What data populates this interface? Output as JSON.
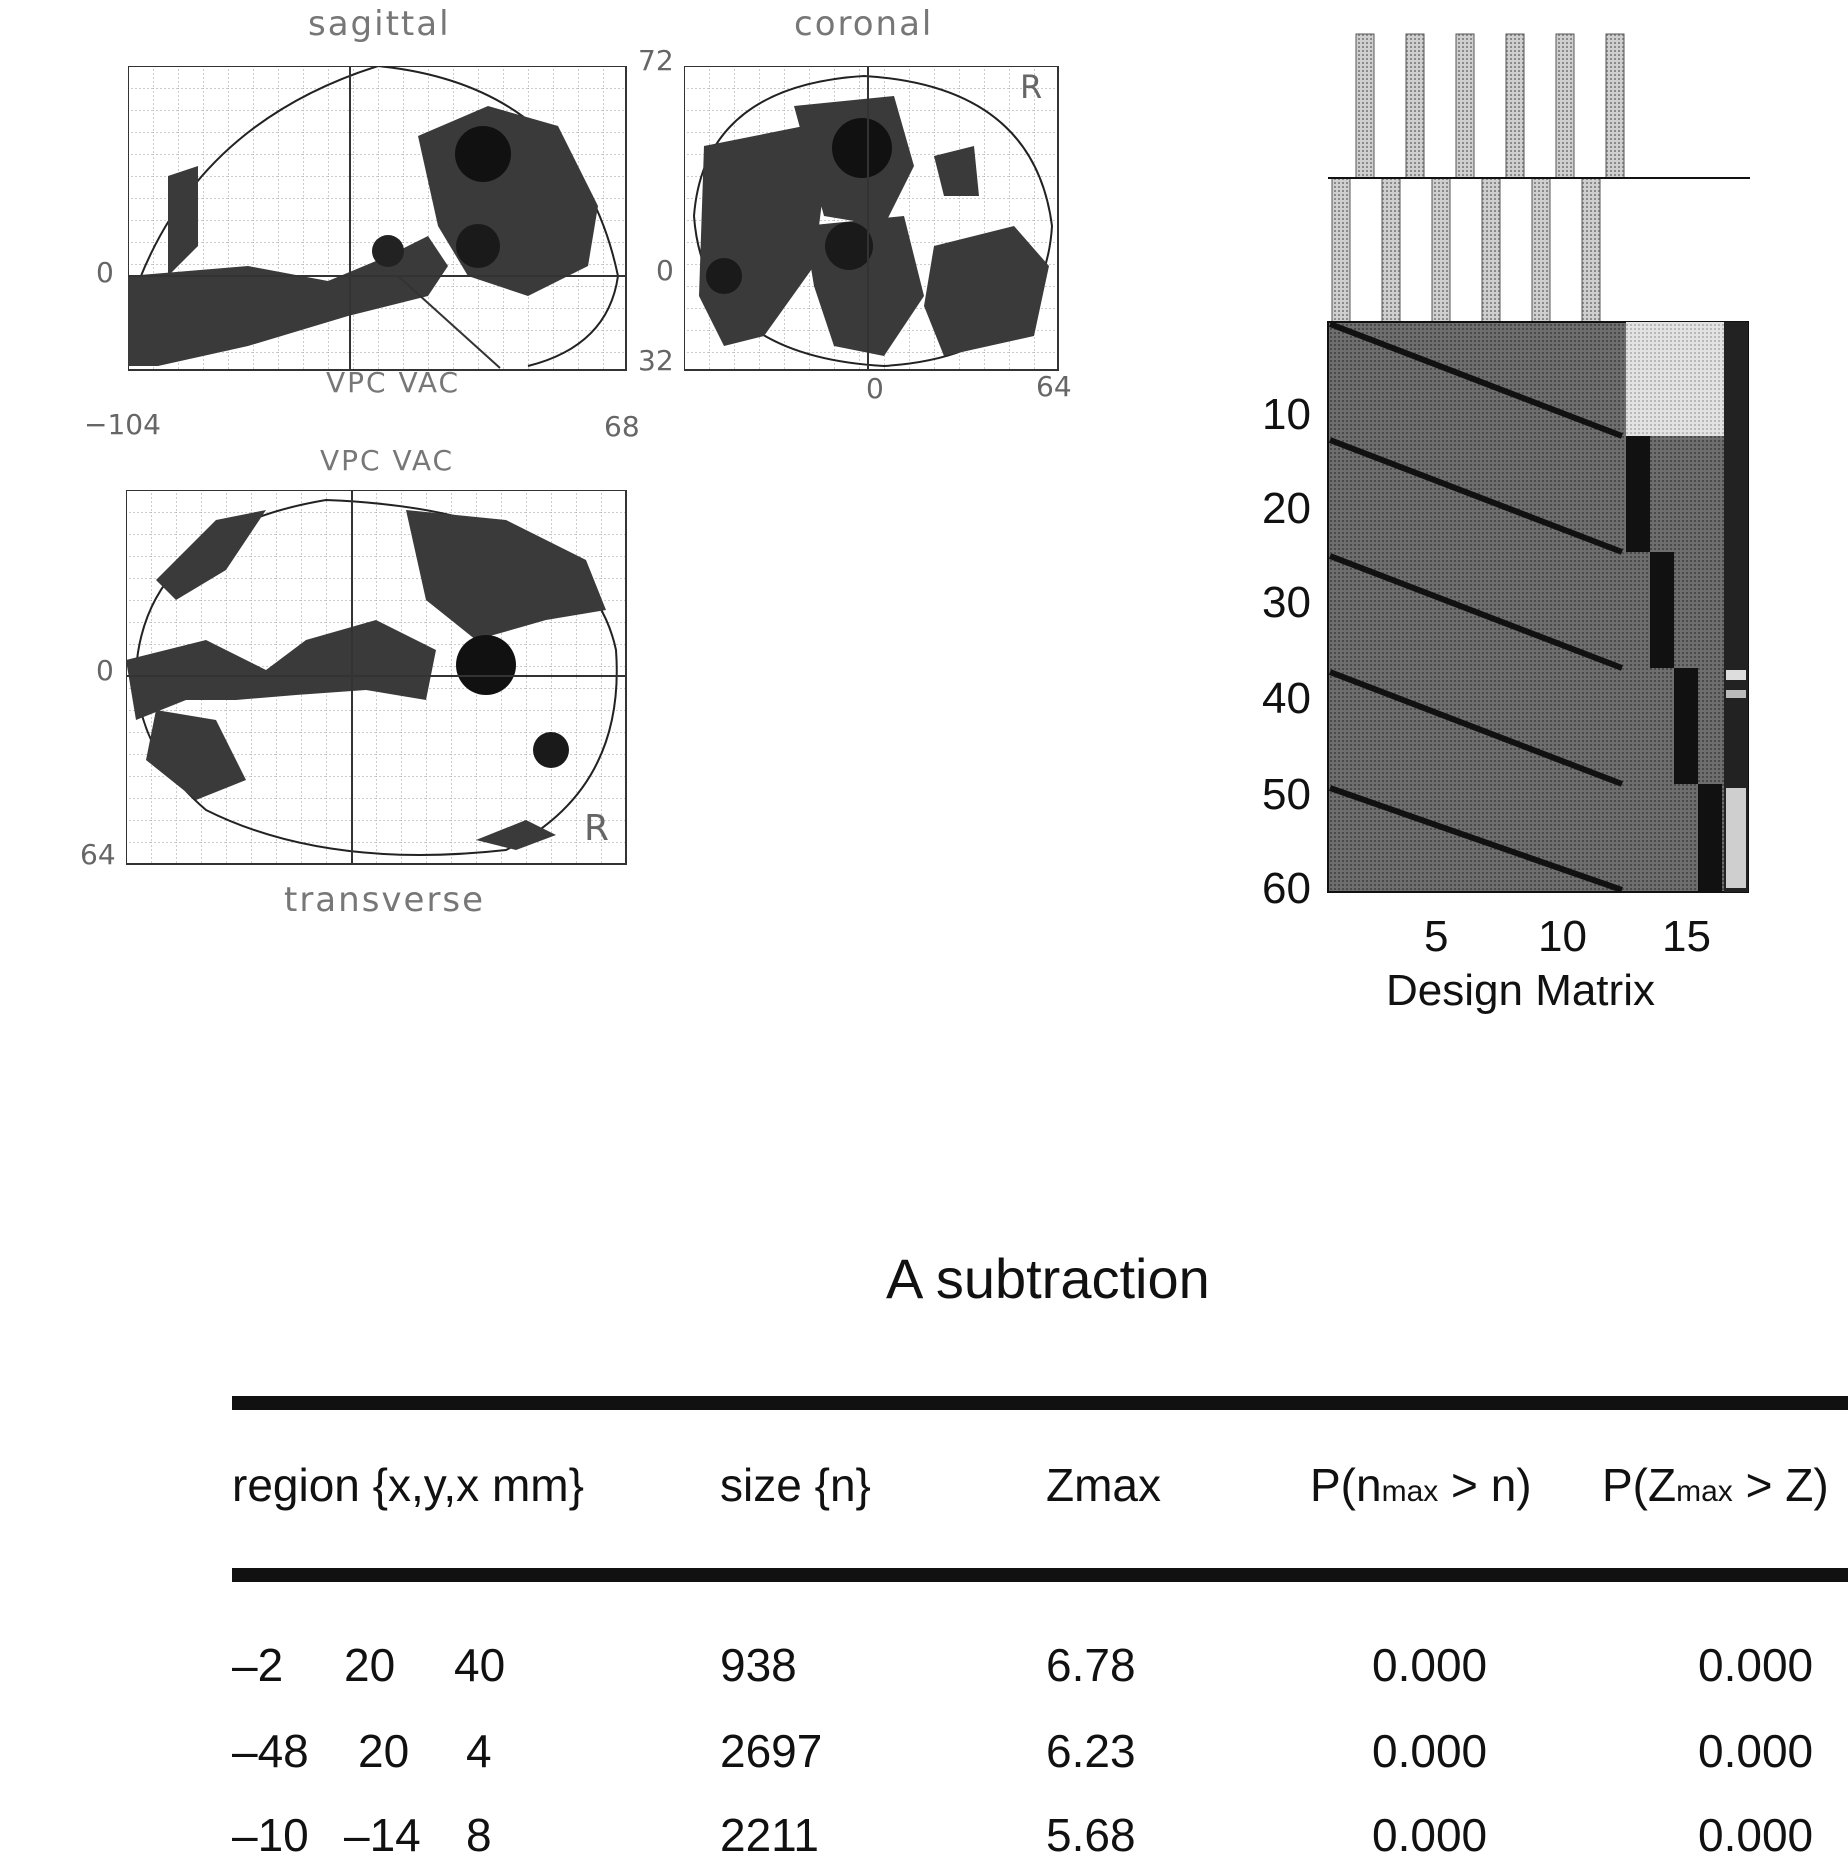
{
  "mip": {
    "sagittal_label": "sagittal",
    "coronal_label": "coronal",
    "transverse_label": "transverse",
    "vpc_vac_label_1": "VPC VAC",
    "vpc_vac_label_2": "VPC VAC",
    "orientation_r": "R",
    "orientation_r_2": "R",
    "ticks": {
      "sag_72": "72",
      "sag_0": "0",
      "sag_32": "32",
      "sag_min104": "−104",
      "sag_68": "68",
      "cor_0": "0",
      "cor_0_bottom": "0",
      "cor_64": "64",
      "tra_0": "0",
      "tra_64": "64",
      "left_0": "0"
    }
  },
  "design_matrix": {
    "caption": "Design Matrix",
    "y_ticks": [
      "10",
      "20",
      "30",
      "40",
      "50",
      "60"
    ],
    "x_ticks": [
      "5",
      "10",
      "15"
    ]
  },
  "results": {
    "title": "A subtraction",
    "headers": {
      "region": "region {x,y,x mm}",
      "size": "size {n}",
      "zmax": "Zmax",
      "p_n_pre": "P(n",
      "p_n_sub": "max",
      "p_n_post": " > n)",
      "p_z_pre": "P(Z",
      "p_z_sub": "max",
      "p_z_post": " > Z)"
    },
    "rows": [
      {
        "x": "–2",
        "y": "20",
        "z": "40",
        "size": "938",
        "zmax": "6.78",
        "pn": "0.000",
        "pz": "0.000"
      },
      {
        "x": "–48",
        "y": "20",
        "z": "4",
        "size": "2697",
        "zmax": "6.23",
        "pn": "0.000",
        "pz": "0.000"
      },
      {
        "x": "–10",
        "y": "–14",
        "z": "8",
        "size": "2211",
        "zmax": "5.68",
        "pn": "0.000",
        "pz": "0.000"
      }
    ]
  }
}
